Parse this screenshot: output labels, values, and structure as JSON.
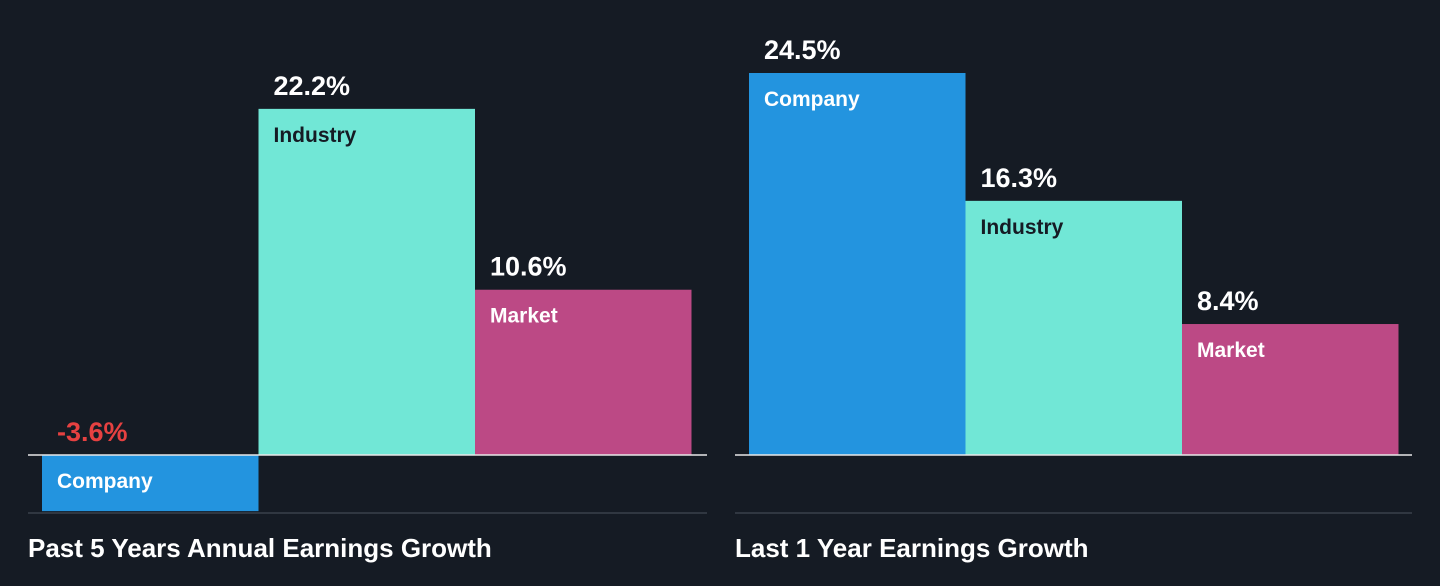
{
  "colors": {
    "background": "#151b24",
    "company": "#2394df",
    "industry": "#71e7d6",
    "market": "#bc4985",
    "value_text": "#ffffff",
    "negative_value_text": "#e64141",
    "label_dark": "#151b24",
    "label_light": "#ffffff",
    "baseline": "#e8e8e8",
    "divider": "#3a414b",
    "title_text": "#ffffff"
  },
  "chart_data": [
    {
      "type": "bar",
      "title": "Past 5 Years Annual Earnings Growth",
      "categories": [
        "Company",
        "Industry",
        "Market"
      ],
      "values": [
        -3.6,
        22.2,
        10.6
      ],
      "value_labels": [
        "-3.6%",
        "22.2%",
        "10.6%"
      ],
      "unit": "%",
      "ylim": [
        -3.6,
        24.5
      ],
      "grid": false,
      "legend": "none"
    },
    {
      "type": "bar",
      "title": "Last 1 Year Earnings Growth",
      "categories": [
        "Company",
        "Industry",
        "Market"
      ],
      "values": [
        24.5,
        16.3,
        8.4
      ],
      "value_labels": [
        "24.5%",
        "16.3%",
        "8.4%"
      ],
      "unit": "%",
      "ylim": [
        -3.6,
        24.5
      ],
      "grid": false,
      "legend": "none"
    }
  ]
}
